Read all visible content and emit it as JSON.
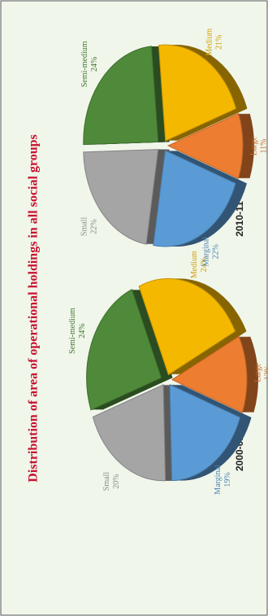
{
  "title": "Distribution of area of operational holdings in all social groups",
  "chart_data": [
    {
      "type": "pie",
      "title": "2000-01",
      "categories": [
        "Marginal",
        "Small",
        "Semi-medium",
        "Medium",
        "Large"
      ],
      "values": [
        19,
        20,
        24,
        24,
        13
      ],
      "value_labels": [
        "19%",
        "20%",
        "24%",
        "24%",
        "13%"
      ],
      "colors": [
        "#5b9bd5",
        "#a5a5a5",
        "#4e8a3a",
        "#f5b800",
        "#ed7d31"
      ]
    },
    {
      "type": "pie",
      "title": "2010-11",
      "categories": [
        "Marginal",
        "Small",
        "Semi-medium",
        "Medium",
        "Large"
      ],
      "values": [
        22,
        22,
        24,
        21,
        11
      ],
      "value_labels": [
        "22%",
        "22%",
        "24%",
        "21%",
        "11%"
      ],
      "colors": [
        "#5b9bd5",
        "#a5a5a5",
        "#4e8a3a",
        "#f5b800",
        "#ed7d31"
      ]
    }
  ]
}
